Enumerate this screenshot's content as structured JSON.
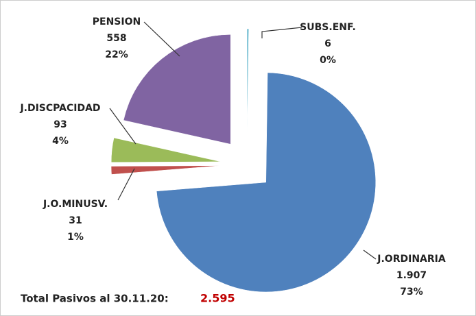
{
  "chart_data": {
    "type": "pie",
    "categories": [
      "SUBS.ENF.",
      "J.ORDINARIA",
      "J.O.MINUSV.",
      "J.DISCPACIDAD",
      "PENSION"
    ],
    "values": [
      6,
      1907,
      31,
      93,
      558
    ],
    "value_labels": [
      "6",
      "1.907",
      "31",
      "93",
      "558"
    ],
    "percent_labels": [
      "0%",
      "73%",
      "1%",
      "4%",
      "22%"
    ],
    "colors": [
      "#4bacc6",
      "#4f81bd",
      "#c0504d",
      "#9bbb59",
      "#8064a2"
    ],
    "total_text": "Total Pasivos al 30.11.20:",
    "total": {
      "value": 2595,
      "label": "2.595"
    }
  }
}
